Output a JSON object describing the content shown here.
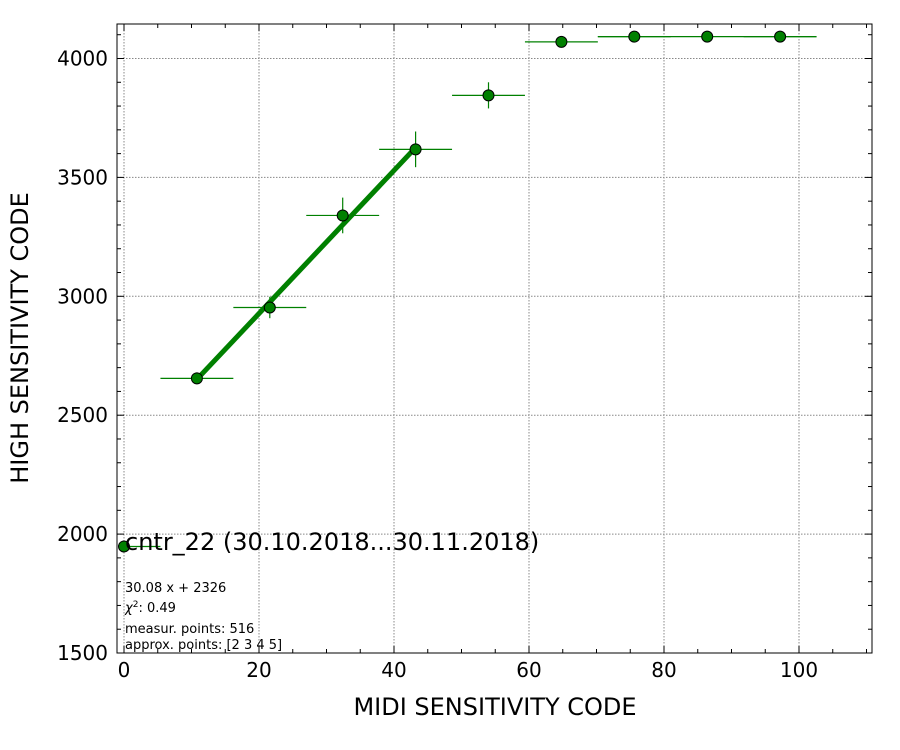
{
  "chart_data": {
    "type": "scatter",
    "xlabel": "MIDI SENSITIVITY CODE",
    "ylabel": "HIGH SENSITIVITY CODE",
    "xlim": [
      -1,
      111
    ],
    "ylim": [
      1500,
      4150
    ],
    "x_ticks": [
      0,
      20,
      40,
      60,
      80,
      100
    ],
    "y_ticks": [
      1500,
      2000,
      2500,
      3000,
      3500,
      4000
    ],
    "grid": true,
    "series_color": "#008000",
    "points": [
      {
        "x": 10.8,
        "y": 2655,
        "xerr": 5.4,
        "yerr": 25
      },
      {
        "x": 21.6,
        "y": 2953,
        "xerr": 5.4,
        "yerr": 45
      },
      {
        "x": 32.4,
        "y": 3340,
        "xerr": 5.4,
        "yerr": 75
      },
      {
        "x": 43.2,
        "y": 3618,
        "xerr": 5.4,
        "yerr": 75
      },
      {
        "x": 54.0,
        "y": 3845,
        "xerr": 5.4,
        "yerr": 55
      },
      {
        "x": 64.8,
        "y": 4070,
        "xerr": 5.4,
        "yerr": 0
      },
      {
        "x": 75.6,
        "y": 4092,
        "xerr": 5.4,
        "yerr": 0
      },
      {
        "x": 86.4,
        "y": 4092,
        "xerr": 16.2,
        "yerr": 0
      },
      {
        "x": 97.2,
        "y": 4092,
        "xerr": 5.4,
        "yerr": 0
      }
    ],
    "fit": {
      "x": [
        10.8,
        43.2
      ],
      "slope": 30.08,
      "intercept": 2326
    },
    "extra_marker": {
      "x": 0,
      "y": 1948,
      "xerr": 5.4
    },
    "annotations": {
      "title": "cntr_22 (30.10.2018...30.11.2018)",
      "fit_equation": "30.08 x + 2326",
      "chi_label": "χ",
      "chi_sup": "2",
      "chi_value": ": 0.49",
      "measur_points": "measur. points: 516",
      "approx_points": "approx. points: [2 3 4 5]"
    }
  }
}
